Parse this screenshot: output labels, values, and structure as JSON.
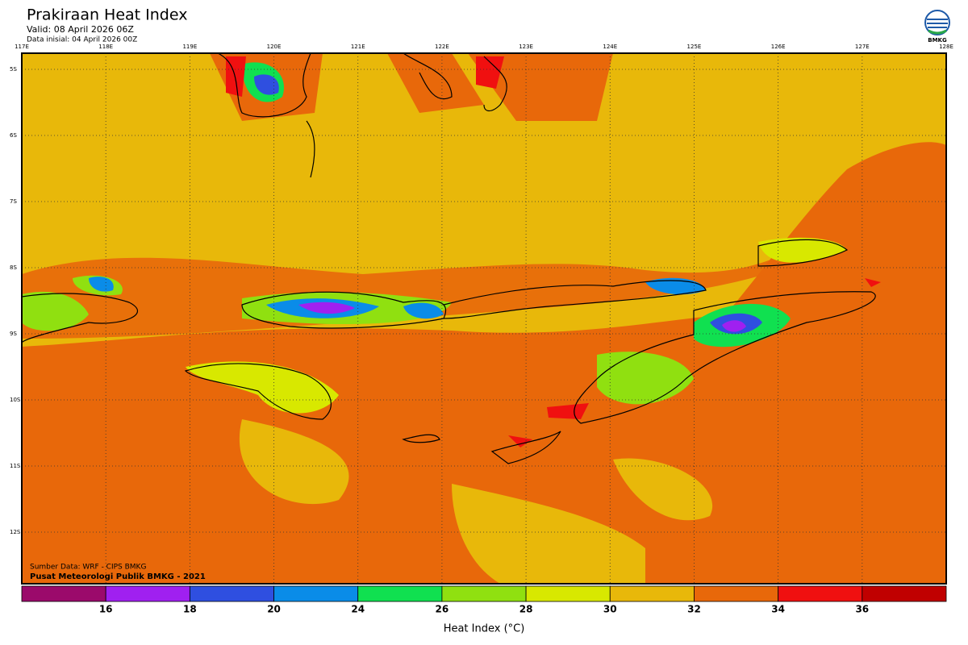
{
  "header": {
    "title": "Prakiraan Heat Index",
    "valid": "Valid: 08 April 2026 06Z",
    "initial": "Data inisial: 04 April 2026 00Z"
  },
  "logo": {
    "label": "BMKG"
  },
  "map": {
    "lon_labels": [
      "117E",
      "118E",
      "119E",
      "120E",
      "121E",
      "122E",
      "123E",
      "124E",
      "125E",
      "126E",
      "127E",
      "128E"
    ],
    "lat_labels": [
      "5S",
      "6S",
      "7S",
      "8S",
      "9S",
      "10S",
      "11S",
      "12S"
    ]
  },
  "credits": [
    "Sumber Data: WRF - CIPS BMKG",
    "Pusat Meteorologi Publik BMKG - 2021"
  ],
  "colorbar": {
    "colors": [
      "#9b0a6b",
      "#a020f0",
      "#2f4fe0",
      "#0a8ce8",
      "#10e050",
      "#90e010",
      "#d8e800",
      "#e8b80a",
      "#e8680a",
      "#f01010",
      "#c00000"
    ],
    "ticks": [
      16,
      18,
      20,
      24,
      26,
      28,
      30,
      32,
      34,
      36
    ],
    "label": "Heat Index (°C)"
  }
}
